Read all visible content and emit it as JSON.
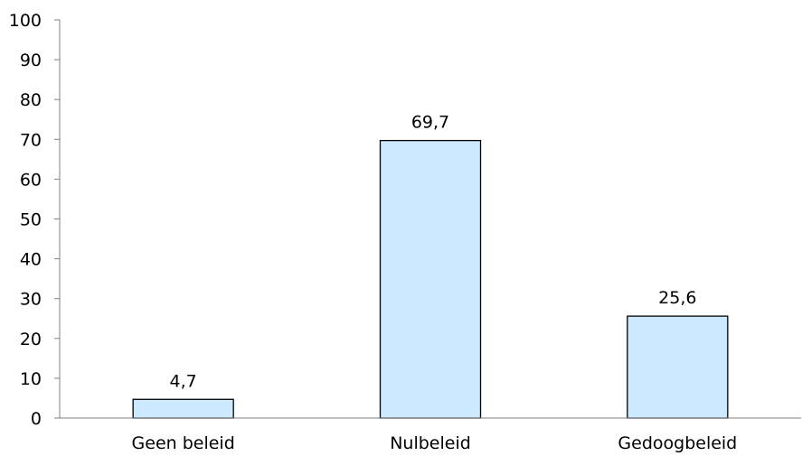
{
  "chart_data": {
    "type": "bar",
    "categories": [
      "Geen beleid",
      "Nulbeleid",
      "Gedoogbeleid"
    ],
    "values": [
      4.7,
      69.7,
      25.6
    ],
    "value_labels": [
      "4,7",
      "69,7",
      "25,6"
    ],
    "ylim": [
      0,
      100
    ],
    "yticks": [
      0,
      10,
      20,
      30,
      40,
      50,
      60,
      70,
      80,
      90,
      100
    ],
    "grid": false,
    "colors": {
      "bar_fill": "#cce9ff",
      "bar_stroke": "#000000",
      "axis": "#808080",
      "text": "#000000"
    }
  }
}
